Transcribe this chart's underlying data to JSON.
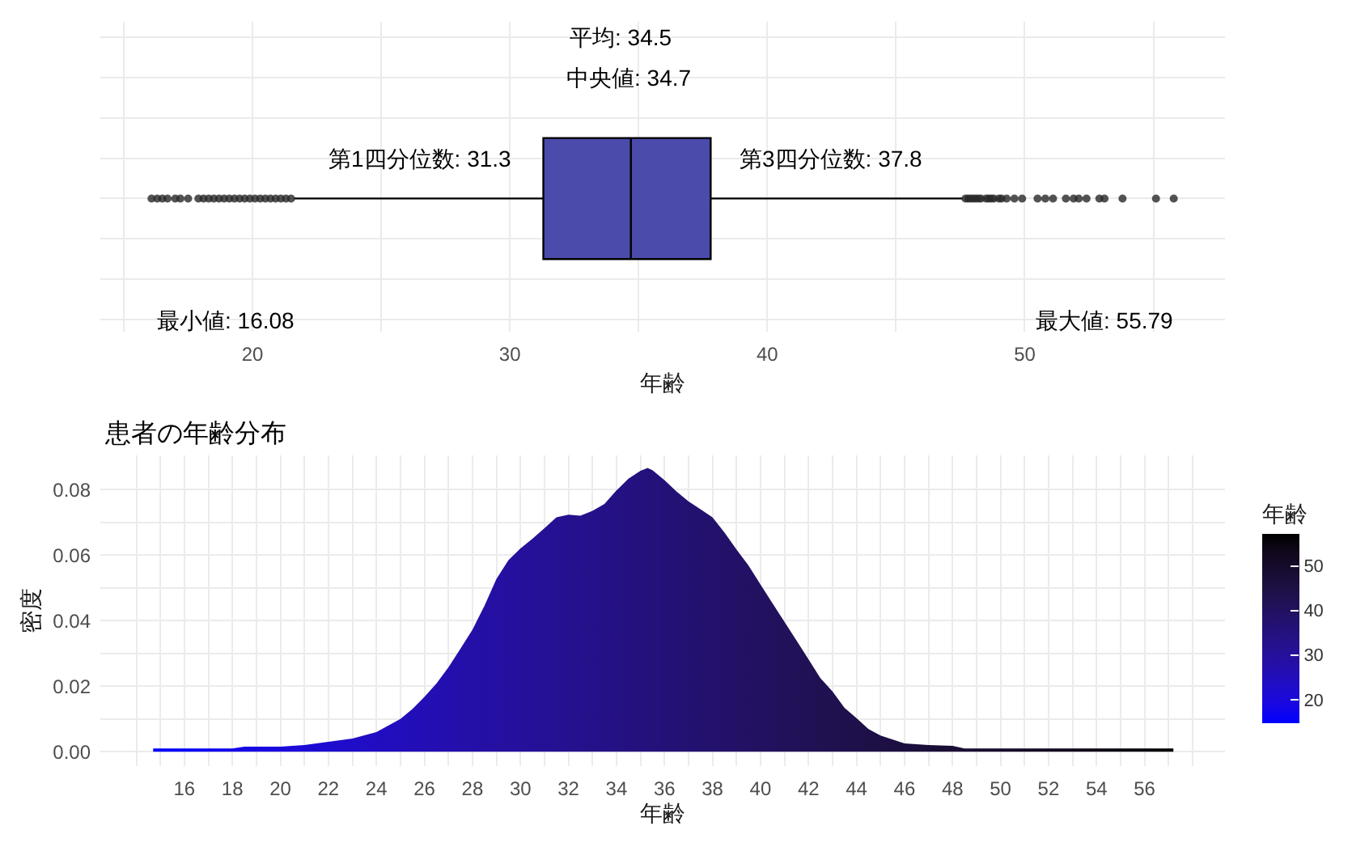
{
  "chart_data": [
    {
      "type": "box",
      "orientation": "horizontal",
      "categories": [
        null
      ],
      "color": "#4b4bab",
      "boxes": [
        {
          "low": 21.6,
          "q1": 31.3,
          "median": 34.7,
          "q3": 37.8,
          "high": 47.6,
          "outliers": [
            16.08,
            16.3,
            16.5,
            16.7,
            17.0,
            17.2,
            17.5,
            17.9,
            18.1,
            18.3,
            18.5,
            18.7,
            18.9,
            19.1,
            19.3,
            19.5,
            19.7,
            19.9,
            20.1,
            20.3,
            20.5,
            20.7,
            20.9,
            21.1,
            21.3,
            21.5,
            47.7,
            47.8,
            47.9,
            48.0,
            48.1,
            48.2,
            48.3,
            48.5,
            48.6,
            48.7,
            48.8,
            49.0,
            49.1,
            49.3,
            49.6,
            49.9,
            50.5,
            50.8,
            51.1,
            51.6,
            51.9,
            52.1,
            52.4,
            52.9,
            53.1,
            53.8,
            55.1,
            55.79
          ]
        }
      ],
      "xlabel": "年齢",
      "xlim": [
        14.09,
        57.78
      ],
      "xticks": [
        20,
        30,
        40,
        50
      ],
      "grid": true,
      "tick_labels": "x",
      "annotations": [
        "平均: 34.5",
        "中央値: 34.7",
        {
          "text": "第1四分位数: 31.3",
          "x": 31.3
        },
        {
          "text": "第3四分位数: 37.8",
          "x": 37.8
        },
        "最小値: 16.08",
        "最大値: 55.79"
      ]
    },
    {
      "type": "area",
      "title": "患者の年齢分布",
      "xlabel": "年齢",
      "ylabel": "密度",
      "x": [
        14.7,
        16,
        18,
        18.5,
        20,
        21,
        22,
        23,
        24,
        25,
        25.5,
        26,
        26.5,
        27,
        27.5,
        28,
        28.5,
        29,
        29.5,
        30,
        30.5,
        31,
        31.5,
        32,
        32.5,
        33,
        33.5,
        34,
        34.5,
        35,
        35.3,
        35.5,
        36,
        36.5,
        37,
        37.5,
        38,
        38.5,
        39,
        39.5,
        40,
        40.5,
        41,
        41.5,
        42,
        42.5,
        43,
        43.5,
        44,
        44.5,
        45,
        46,
        47,
        48,
        48.5,
        50,
        52,
        54,
        56,
        57.2
      ],
      "values": [
        0.001,
        0.001,
        0.001,
        0.0015,
        0.0015,
        0.002,
        0.003,
        0.004,
        0.006,
        0.01,
        0.013,
        0.0167,
        0.0208,
        0.0257,
        0.0314,
        0.0372,
        0.0445,
        0.0527,
        0.0584,
        0.062,
        0.065,
        0.0682,
        0.0715,
        0.0723,
        0.072,
        0.0735,
        0.0756,
        0.0797,
        0.0833,
        0.0857,
        0.0866,
        0.0859,
        0.0829,
        0.0794,
        0.0764,
        0.074,
        0.0715,
        0.0669,
        0.0617,
        0.0568,
        0.051,
        0.0453,
        0.0396,
        0.0339,
        0.0282,
        0.0224,
        0.0184,
        0.0134,
        0.0102,
        0.0069,
        0.0049,
        0.0025,
        0.002,
        0.0018,
        0.001,
        0.001,
        0.001,
        0.001,
        0.001,
        0.001
      ],
      "xlim": [
        12.5,
        59.35
      ],
      "xticks": [
        16,
        18,
        20,
        22,
        24,
        26,
        28,
        30,
        32,
        34,
        36,
        38,
        40,
        42,
        44,
        46,
        48,
        50,
        52,
        54,
        56
      ],
      "ylim": [
        -0.0043,
        0.0903
      ],
      "yticks": [
        {
          "value": 0,
          "label": "0.00"
        },
        0.02,
        0.04,
        0.06,
        0.08
      ],
      "grid": true,
      "clabel": "年齢",
      "clim": [
        14.7,
        57.2
      ],
      "cticks": [
        20,
        30,
        40,
        50
      ]
    }
  ]
}
